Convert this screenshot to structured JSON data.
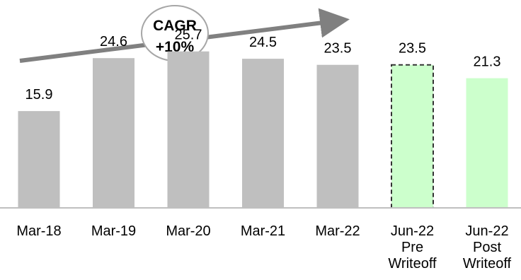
{
  "chart_data": {
    "type": "bar",
    "title": "",
    "xlabel": "",
    "ylabel": "",
    "ylim": [
      0,
      29.5
    ],
    "grid": false,
    "legend": "none",
    "categories": [
      [
        "Mar-18"
      ],
      [
        "Mar-19"
      ],
      [
        "Mar-20"
      ],
      [
        "Mar-21"
      ],
      [
        "Mar-22"
      ],
      [
        "Jun-22",
        "Pre",
        "Writeoff"
      ],
      [
        "Jun-22",
        "Post",
        "Writeoff"
      ]
    ],
    "values": [
      15.9,
      24.6,
      25.7,
      24.5,
      23.5,
      23.5,
      21.3
    ],
    "value_labels": [
      "15.9",
      "24.6",
      "25.7",
      "24.5",
      "23.5",
      "23.5",
      "21.3"
    ],
    "bar_styles": [
      "solid",
      "solid",
      "solid",
      "solid",
      "solid",
      "dashed",
      "solid"
    ],
    "annotation": {
      "lines": [
        "CAGR",
        "+10%"
      ]
    },
    "colors": {
      "gray_bar": "#BFBFBF",
      "green_bar": "#CCFFCC",
      "dashed_outline": "#333333",
      "axis": "#BFBFBF",
      "arrow": "#808080",
      "bubble_border": "#A6A6A6",
      "text": "#000000"
    }
  }
}
